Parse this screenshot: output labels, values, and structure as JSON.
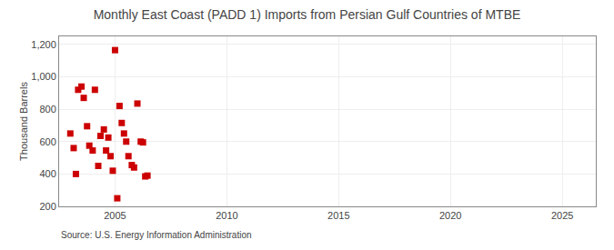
{
  "chart_data": {
    "type": "scatter",
    "title": "Monthly East Coast (PADD 1) Imports from Persian Gulf Countries of MTBE",
    "ylabel": "Thousand Barrels",
    "annotations": [
      "Source: U.S. Energy Information Administration"
    ],
    "x": [
      2003.0,
      2003.15,
      2003.25,
      2003.35,
      2003.5,
      2003.6,
      2003.75,
      2003.85,
      2004.0,
      2004.1,
      2004.25,
      2004.35,
      2004.5,
      2004.6,
      2004.7,
      2004.8,
      2004.9,
      2005.0,
      2005.1,
      2005.2,
      2005.3,
      2005.4,
      2005.5,
      2005.6,
      2005.75,
      2005.85,
      2006.0,
      2006.15,
      2006.25,
      2006.35,
      2006.45
    ],
    "values": [
      650,
      560,
      400,
      920,
      940,
      870,
      695,
      575,
      545,
      920,
      450,
      635,
      675,
      545,
      625,
      510,
      420,
      1165,
      250,
      820,
      715,
      650,
      600,
      510,
      455,
      440,
      835,
      600,
      595,
      385,
      390
    ],
    "color": "#cc0000",
    "marker": "square",
    "xlim": [
      2002.5,
      2026.5
    ],
    "ylim": [
      200,
      1250
    ],
    "xticks": [
      2005,
      2010,
      2015,
      2020,
      2025
    ],
    "yticks": [
      200,
      400,
      600,
      800,
      {
        "value": 1000,
        "label": "1,000"
      },
      {
        "value": 1200,
        "label": "1,200"
      }
    ],
    "grid": true
  }
}
